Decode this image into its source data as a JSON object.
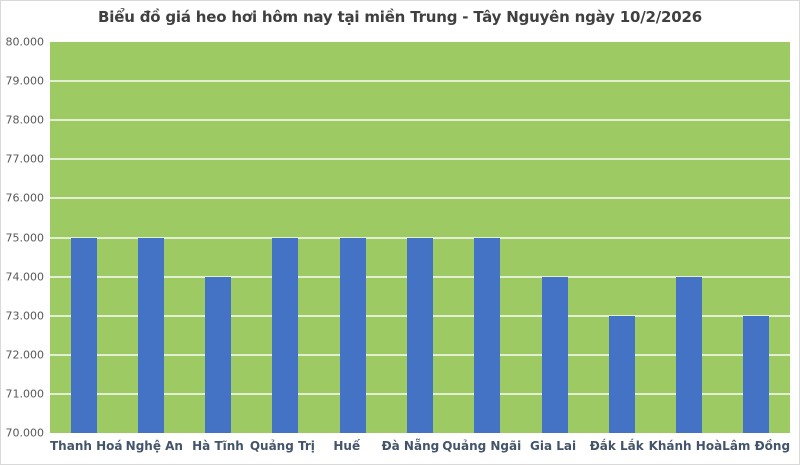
{
  "chart_data": {
    "type": "bar",
    "title": "Biểu đồ giá heo hơi hôm nay tại miền Trung - Tây Nguyên ngày 10/2/2026",
    "categories": [
      "Thanh Hoá",
      "Nghệ An",
      "Hà Tĩnh",
      "Quảng Trị",
      "Huế",
      "Đà Nẵng",
      "Quảng Ngãi",
      "Gia Lai",
      "Đắk Lắk",
      "Khánh Hoà",
      "Lâm Đồng"
    ],
    "values": [
      75000,
      75000,
      74000,
      75000,
      75000,
      75000,
      75000,
      74000,
      73000,
      74000,
      73000
    ],
    "xlabel": "",
    "ylabel": "",
    "ylim": [
      70000,
      80000
    ],
    "ytick_step": 1000,
    "ytick_labels": [
      "70.000",
      "71.000",
      "72.000",
      "73.000",
      "74.000",
      "75.000",
      "76.000",
      "77.000",
      "78.000",
      "79.000",
      "80.000"
    ],
    "grid": true,
    "legend": "none",
    "colors": {
      "bar": "#4472c4",
      "plot_background": "#9dca63",
      "gridline": "rgba(255,255,255,0.70)",
      "title_text": "#404040",
      "ytick_text": "#595959",
      "xtick_text": "#44546a",
      "chart_border": "#d9d9d9"
    }
  }
}
